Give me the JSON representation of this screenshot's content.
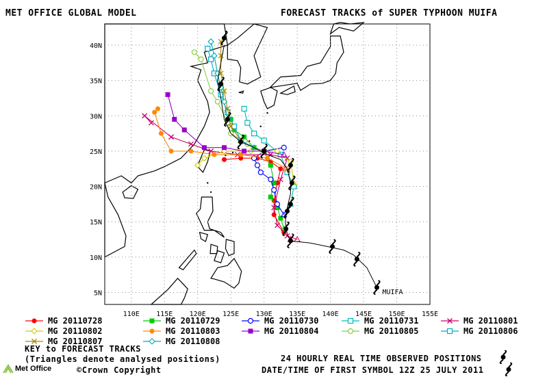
{
  "header": {
    "left_title": "MET OFFICE GLOBAL MODEL",
    "right_title": "FORECAST TRACKS of SUPER TYPHOON MUIFA"
  },
  "map": {
    "lon_labels": [
      "110E",
      "115E",
      "120E",
      "125E",
      "130E",
      "135E",
      "140E",
      "145E",
      "150E",
      "155E"
    ],
    "lat_labels": [
      "40N",
      "35N",
      "30N",
      "25N",
      "20N",
      "15N",
      "10N",
      "5N"
    ],
    "storm_label": "MUIFA",
    "observed_track": [
      [
        147.0,
        5.7
      ],
      [
        145.5,
        8.5
      ],
      [
        143.5,
        10.3
      ],
      [
        142.0,
        11.0
      ],
      [
        139.5,
        11.5
      ],
      [
        137.0,
        12.0
      ],
      [
        134.0,
        12.3
      ],
      [
        133.5,
        13.2
      ],
      [
        133.2,
        15.0
      ],
      [
        133.5,
        17.0
      ],
      [
        134.0,
        19.0
      ],
      [
        134.0,
        20.5
      ],
      [
        133.5,
        22.5
      ],
      [
        132.5,
        23.8
      ],
      [
        130.5,
        24.5
      ],
      [
        128.5,
        25.5
      ],
      [
        126.5,
        26.3
      ],
      [
        125.0,
        27.5
      ],
      [
        124.0,
        29.5
      ],
      [
        123.5,
        32.5
      ],
      [
        123.0,
        35.0
      ],
      [
        123.5,
        37.5
      ],
      [
        124.0,
        40.0
      ]
    ],
    "observed_symbols": [
      [
        147.0,
        5.7
      ],
      [
        144.0,
        9.7
      ],
      [
        140.3,
        11.5
      ],
      [
        134.0,
        12.3
      ],
      [
        133.3,
        14.0
      ],
      [
        133.5,
        16.5
      ],
      [
        134.0,
        17.5
      ],
      [
        134.2,
        20.5
      ],
      [
        134.0,
        23.0
      ],
      [
        130.0,
        25.0
      ],
      [
        126.5,
        26.3
      ],
      [
        124.5,
        29.5
      ],
      [
        123.5,
        34.5
      ],
      [
        124.0,
        41.0
      ]
    ]
  },
  "forecast_tracks": [
    {
      "name": "MG 20110728",
      "color": "#ff0000",
      "marker": "circle-filled",
      "points": [
        [
          134.0,
          12.5
        ],
        [
          133.0,
          13.5
        ],
        [
          131.5,
          16.0
        ],
        [
          131.5,
          18.0
        ],
        [
          132.0,
          20.5
        ],
        [
          132.5,
          22.5
        ],
        [
          131.0,
          23.5
        ],
        [
          129.0,
          24.0
        ],
        [
          126.5,
          24.0
        ],
        [
          124.0,
          23.8
        ]
      ]
    },
    {
      "name": "MG 20110729",
      "color": "#00cc00",
      "marker": "square-filled",
      "points": [
        [
          133.0,
          14.0
        ],
        [
          132.5,
          15.5
        ],
        [
          132.0,
          17.0
        ],
        [
          131.0,
          18.5
        ],
        [
          131.5,
          20.5
        ],
        [
          131.0,
          23.0
        ],
        [
          130.0,
          25.0
        ],
        [
          128.5,
          25.5
        ],
        [
          127.0,
          27.0
        ],
        [
          125.5,
          28.0
        ],
        [
          125.0,
          29.5
        ]
      ]
    },
    {
      "name": "MG 20110730",
      "color": "#0000ff",
      "marker": "circle-open",
      "points": [
        [
          133.0,
          16.0
        ],
        [
          132.0,
          17.5
        ],
        [
          131.5,
          19.5
        ],
        [
          131.0,
          21.0
        ],
        [
          129.5,
          22.0
        ],
        [
          129.0,
          23.0
        ],
        [
          128.5,
          24.0
        ],
        [
          130.0,
          25.0
        ],
        [
          133.0,
          25.5
        ]
      ]
    },
    {
      "name": "MG 20110731",
      "color": "#00bbbb",
      "marker": "square-open",
      "points": [
        [
          134.0,
          17.5
        ],
        [
          134.5,
          20.0
        ],
        [
          133.5,
          22.0
        ],
        [
          132.5,
          24.5
        ],
        [
          130.0,
          26.5
        ],
        [
          128.5,
          27.5
        ],
        [
          127.5,
          29.0
        ],
        [
          127.0,
          31.0
        ]
      ]
    },
    {
      "name": "MG 20110801",
      "color": "#cc0066",
      "marker": "x",
      "points": [
        [
          135.0,
          12.5
        ],
        [
          133.5,
          13.0
        ],
        [
          132.0,
          14.5
        ],
        [
          131.5,
          17.0
        ],
        [
          132.5,
          21.0
        ],
        [
          133.5,
          24.0
        ],
        [
          131.0,
          24.5
        ],
        [
          126.0,
          24.5
        ],
        [
          122.0,
          25.0
        ],
        [
          119.0,
          26.0
        ],
        [
          116.0,
          27.0
        ],
        [
          112.0,
          30.0
        ],
        [
          113.0,
          29.0
        ]
      ]
    },
    {
      "name": "MG 20110802",
      "color": "#cccc00",
      "marker": "diamond-open",
      "points": [
        [
          134.5,
          20.5
        ],
        [
          134.0,
          23.5
        ],
        [
          132.0,
          25.0
        ],
        [
          128.0,
          25.0
        ],
        [
          124.0,
          25.0
        ],
        [
          121.0,
          24.0
        ],
        [
          120.0,
          23.0
        ]
      ]
    },
    {
      "name": "MG 20110803",
      "color": "#ff8800",
      "marker": "circle-filled",
      "points": [
        [
          133.5,
          22.5
        ],
        [
          130.5,
          24.0
        ],
        [
          126.5,
          24.5
        ],
        [
          122.5,
          24.5
        ],
        [
          119.0,
          25.0
        ],
        [
          116.0,
          25.0
        ],
        [
          114.5,
          27.5
        ],
        [
          113.5,
          30.5
        ],
        [
          114.0,
          31.0
        ]
      ]
    },
    {
      "name": "MG 20110804",
      "color": "#9900cc",
      "marker": "square-filled",
      "points": [
        [
          133.0,
          24.5
        ],
        [
          130.0,
          25.0
        ],
        [
          127.0,
          25.0
        ],
        [
          124.0,
          25.5
        ],
        [
          121.0,
          25.5
        ],
        [
          118.0,
          28.0
        ],
        [
          116.5,
          29.5
        ],
        [
          115.5,
          33.0
        ]
      ]
    },
    {
      "name": "MG 20110805",
      "color": "#88cc44",
      "marker": "circle-open",
      "points": [
        [
          130.0,
          25.0
        ],
        [
          127.5,
          26.0
        ],
        [
          125.0,
          27.5
        ],
        [
          124.5,
          29.0
        ],
        [
          123.0,
          32.0
        ],
        [
          122.0,
          33.5
        ],
        [
          120.5,
          38.0
        ],
        [
          119.5,
          39.0
        ]
      ]
    },
    {
      "name": "MG 20110806",
      "color": "#00aacc",
      "marker": "square-open",
      "points": [
        [
          128.5,
          25.5
        ],
        [
          126.5,
          26.5
        ],
        [
          125.5,
          28.5
        ],
        [
          124.5,
          30.5
        ],
        [
          123.5,
          33.0
        ],
        [
          122.5,
          36.0
        ],
        [
          122.0,
          38.0
        ],
        [
          121.5,
          39.5
        ]
      ]
    },
    {
      "name": "MG 20110807",
      "color": "#aa8800",
      "marker": "x",
      "points": [
        [
          126.5,
          26.5
        ],
        [
          125.0,
          28.5
        ],
        [
          124.5,
          31.0
        ],
        [
          124.0,
          33.5
        ],
        [
          123.5,
          36.0
        ],
        [
          123.5,
          38.5
        ],
        [
          123.5,
          40.5
        ]
      ]
    },
    {
      "name": "MG 20110808",
      "color": "#00aaaa",
      "marker": "diamond-open",
      "points": [
        [
          124.5,
          29.5
        ],
        [
          124.0,
          32.0
        ],
        [
          123.5,
          34.0
        ],
        [
          123.0,
          36.0
        ],
        [
          122.5,
          38.5
        ],
        [
          122.0,
          40.5
        ]
      ]
    }
  ],
  "legend": {
    "key_title": "KEY to FORECAST TRACKS",
    "key_note": "(Triangles denote analysed positions)",
    "copyright": "©Crown Copyright",
    "observed_note": "24 HOURLY REAL TIME OBSERVED POSITIONS",
    "first_symbol_note": "DATE/TIME OF FIRST SYMBOL 12Z 25 JULY 2011",
    "logo_text": "Met Office"
  },
  "colors": {
    "land": "#000000",
    "grid": "#888888",
    "sea": "#ffffff",
    "observed": "#000000"
  },
  "icons": {
    "typhoon": "typhoon-symbol-icon",
    "logo": "met-office-logo-icon"
  }
}
